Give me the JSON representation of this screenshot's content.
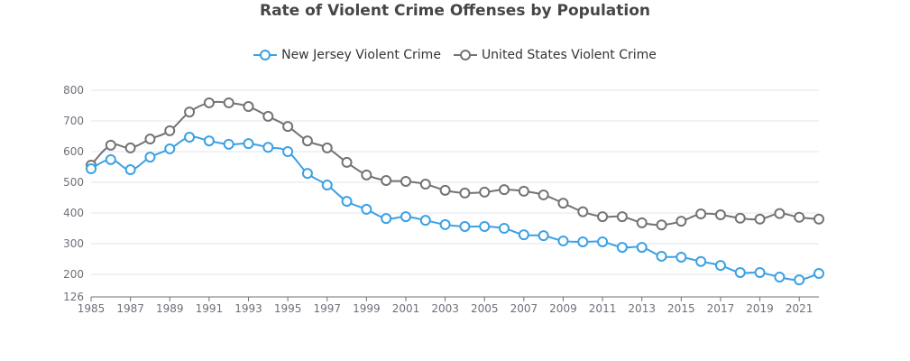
{
  "chart_data": {
    "type": "line",
    "title": "Rate of Violent Crime Offenses by Population",
    "xlabel": "",
    "ylabel": "",
    "x": [
      1985,
      1986,
      1987,
      1988,
      1989,
      1990,
      1991,
      1992,
      1993,
      1994,
      1995,
      1996,
      1997,
      1998,
      1999,
      2000,
      2001,
      2002,
      2003,
      2004,
      2005,
      2006,
      2007,
      2008,
      2009,
      2010,
      2011,
      2012,
      2013,
      2014,
      2015,
      2016,
      2017,
      2018,
      2019,
      2020,
      2021,
      2022
    ],
    "x_tick_labels": [
      "1985",
      "1987",
      "1989",
      "1991",
      "1993",
      "1995",
      "1997",
      "1999",
      "2001",
      "2003",
      "2005",
      "2007",
      "2009",
      "2011",
      "2013",
      "2015",
      "2017",
      "2019",
      "2021"
    ],
    "y_tick_labels": [
      "126",
      "200",
      "300",
      "400",
      "500",
      "600",
      "700",
      "800"
    ],
    "ylim": [
      126,
      800
    ],
    "grid": true,
    "legend_position": "top-center",
    "series": [
      {
        "name": "New Jersey Violent Crime",
        "color": "#3ba1e3",
        "values": [
          544,
          574,
          541,
          582,
          609,
          647,
          635,
          624,
          626,
          614,
          600,
          529,
          491,
          438,
          412,
          382,
          388,
          376,
          362,
          356,
          356,
          350,
          329,
          326,
          309,
          306,
          306,
          288,
          288,
          259,
          256,
          242,
          229,
          206,
          206,
          191,
          182,
          203
        ]
      },
      {
        "name": "United States Violent Crime",
        "color": "#737373",
        "values": [
          556,
          621,
          612,
          641,
          668,
          729,
          759,
          759,
          747,
          715,
          682,
          635,
          612,
          565,
          524,
          506,
          503,
          494,
          474,
          465,
          468,
          476,
          471,
          459,
          432,
          404,
          388,
          388,
          368,
          361,
          373,
          397,
          394,
          383,
          380,
          398,
          386,
          380
        ]
      }
    ]
  }
}
